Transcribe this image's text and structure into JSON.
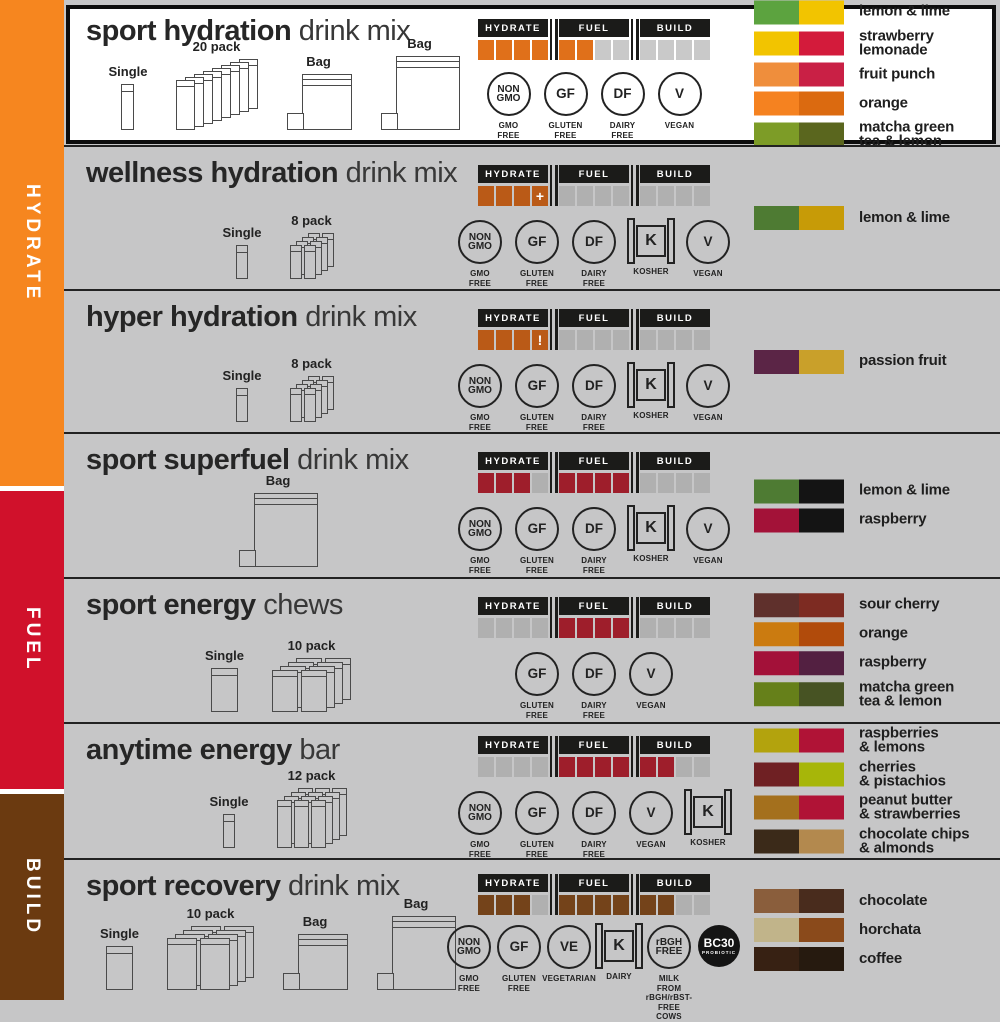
{
  "canvas": {
    "row_bg": "#C6C6C7",
    "highlight_bg": "#FFFFFF",
    "highlight_border": "#0D0D0D"
  },
  "sidebar": {
    "segments": [
      {
        "label": "HYDRATE",
        "color": "#F6861F"
      },
      {
        "label": "FUEL",
        "color": "#D0112B"
      },
      {
        "label": "BUILD",
        "color": "#6B3A10"
      }
    ]
  },
  "meter": {
    "headers": [
      "HYDRATE",
      "FUEL",
      "BUILD"
    ],
    "header_bg": "#1B1B19"
  },
  "products": [
    {
      "id": "sport-hydration",
      "name_bold": "sport hydration",
      "name_rest": " drink mix",
      "highlighted": true,
      "accent": "#E0701A",
      "off_color": "#C9C9C9",
      "packages": [
        {
          "label": "Single",
          "type": "stick"
        },
        {
          "label": "20 pack",
          "type": "stack20"
        },
        {
          "label": "Bag",
          "type": "bag-md"
        },
        {
          "label": "Bag",
          "type": "bag-lg"
        }
      ],
      "cells": {
        "hydrate": [
          "1",
          "1",
          "1",
          "1"
        ],
        "fuel": [
          "1",
          "1",
          "0",
          "0"
        ],
        "build": [
          "0",
          "0",
          "0",
          "0"
        ]
      },
      "badges": [
        {
          "type": "circle",
          "sym": "NON\nGMO",
          "label": "GMO\nFREE"
        },
        {
          "type": "circle",
          "sym": "GF",
          "label": "GLUTEN\nFREE"
        },
        {
          "type": "circle",
          "sym": "DF",
          "label": "DAIRY\nFREE"
        },
        {
          "type": "circle",
          "sym": "V",
          "label": "VEGAN"
        }
      ],
      "flavors": [
        {
          "name": "lemon & lime",
          "c1": "#5CA33F",
          "c2": "#F2C400"
        },
        {
          "name": "strawberry\nlemonade",
          "c1": "#F2C400",
          "c2": "#D31B3B"
        },
        {
          "name": "fruit punch",
          "c1": "#EF8E3C",
          "c2": "#C92045"
        },
        {
          "name": "orange",
          "c1": "#F58220",
          "c2": "#DB6A10"
        },
        {
          "name": "matcha green\ntea & lemon",
          "c1": "#7D9C27",
          "c2": "#5A661E"
        }
      ]
    },
    {
      "id": "wellness-hydration",
      "name_bold": "wellness hydration",
      "name_rest": " drink mix",
      "accent": "#BA5A17",
      "off_color": "#B0B0B0",
      "packages": [
        {
          "label": "Single",
          "type": "stick-sm"
        },
        {
          "label": "8 pack",
          "type": "stack8"
        }
      ],
      "cells": {
        "hydrate": [
          "1",
          "1",
          "1",
          "+"
        ],
        "fuel": [
          "0",
          "0",
          "0",
          "0"
        ],
        "build": [
          "0",
          "0",
          "0",
          "0"
        ]
      },
      "badges": [
        {
          "type": "circle",
          "sym": "NON\nGMO",
          "label": "GMO\nFREE"
        },
        {
          "type": "circle",
          "sym": "GF",
          "label": "GLUTEN\nFREE"
        },
        {
          "type": "circle",
          "sym": "DF",
          "label": "DAIRY\nFREE"
        },
        {
          "type": "kosher",
          "sym": "K",
          "label": "KOSHER"
        },
        {
          "type": "circle",
          "sym": "V",
          "label": "VEGAN"
        }
      ],
      "flavors": [
        {
          "name": "lemon & lime",
          "c1": "#4E7B33",
          "c2": "#C79B07"
        }
      ]
    },
    {
      "id": "hyper-hydration",
      "name_bold": "hyper hydration",
      "name_rest": " drink mix",
      "accent": "#BA5A17",
      "off_color": "#B0B0B0",
      "packages": [
        {
          "label": "Single",
          "type": "stick-sm"
        },
        {
          "label": "8 pack",
          "type": "stack8"
        }
      ],
      "cells": {
        "hydrate": [
          "1",
          "1",
          "1",
          "!"
        ],
        "fuel": [
          "0",
          "0",
          "0",
          "0"
        ],
        "build": [
          "0",
          "0",
          "0",
          "0"
        ]
      },
      "badges": [
        {
          "type": "circle",
          "sym": "NON\nGMO",
          "label": "GMO\nFREE"
        },
        {
          "type": "circle",
          "sym": "GF",
          "label": "GLUTEN\nFREE"
        },
        {
          "type": "circle",
          "sym": "DF",
          "label": "DAIRY\nFREE"
        },
        {
          "type": "kosher",
          "sym": "K",
          "label": "KOSHER"
        },
        {
          "type": "circle",
          "sym": "V",
          "label": "VEGAN"
        }
      ],
      "flavors": [
        {
          "name": "passion fruit",
          "c1": "#5B2546",
          "c2": "#C9A02A"
        }
      ]
    },
    {
      "id": "sport-superfuel",
      "name_bold": "sport superfuel",
      "name_rest": " drink mix",
      "accent": "#9E1E2B",
      "off_color": "#B0B0B0",
      "packages": [
        {
          "label": "Bag",
          "type": "bag-lg"
        }
      ],
      "cells": {
        "hydrate": [
          "1",
          "1",
          "1",
          "0"
        ],
        "fuel": [
          "1",
          "1",
          "1",
          "1"
        ],
        "build": [
          "0",
          "0",
          "0",
          "0"
        ]
      },
      "badges": [
        {
          "type": "circle",
          "sym": "NON\nGMO",
          "label": "GMO\nFREE"
        },
        {
          "type": "circle",
          "sym": "GF",
          "label": "GLUTEN\nFREE"
        },
        {
          "type": "circle",
          "sym": "DF",
          "label": "DAIRY\nFREE"
        },
        {
          "type": "kosher",
          "sym": "K",
          "label": "KOSHER"
        },
        {
          "type": "circle",
          "sym": "V",
          "label": "VEGAN"
        }
      ],
      "flavors": [
        {
          "name": "lemon & lime",
          "c1": "#4E7B33",
          "c2": "#141414"
        },
        {
          "name": "raspberry",
          "c1": "#A31238",
          "c2": "#141414"
        }
      ]
    },
    {
      "id": "sport-energy",
      "name_bold": "sport energy",
      "name_rest": " chews",
      "accent": "#9E1E2B",
      "off_color": "#B0B0B0",
      "packages": [
        {
          "label": "Single",
          "type": "packet"
        },
        {
          "label": "10 pack",
          "type": "stack10"
        }
      ],
      "cells": {
        "hydrate": [
          "0",
          "0",
          "0",
          "0"
        ],
        "fuel": [
          "1",
          "1",
          "1",
          "1"
        ],
        "build": [
          "0",
          "0",
          "0",
          "0"
        ]
      },
      "badges": [
        {
          "type": "circle",
          "sym": "GF",
          "label": "GLUTEN\nFREE"
        },
        {
          "type": "circle",
          "sym": "DF",
          "label": "DAIRY\nFREE"
        },
        {
          "type": "circle",
          "sym": "V",
          "label": "VEGAN"
        }
      ],
      "flavors": [
        {
          "name": "sour cherry",
          "c1": "#5F302C",
          "c2": "#7D2B22"
        },
        {
          "name": "orange",
          "c1": "#CB7B10",
          "c2": "#B14B0B"
        },
        {
          "name": "raspberry",
          "c1": "#A31139",
          "c2": "#532041"
        },
        {
          "name": "matcha green\ntea & lemon",
          "c1": "#66801A",
          "c2": "#475323"
        }
      ]
    },
    {
      "id": "anytime-energy",
      "name_bold": "anytime energy",
      "name_rest": " bar",
      "accent": "#9E1E2B",
      "off_color": "#B0B0B0",
      "packages": [
        {
          "label": "Single",
          "type": "stick-sm"
        },
        {
          "label": "12 pack",
          "type": "stack12"
        }
      ],
      "cells": {
        "hydrate": [
          "0",
          "0",
          "0",
          "0"
        ],
        "fuel": [
          "1",
          "1",
          "1",
          "1"
        ],
        "build": [
          "1",
          "1",
          "0",
          "0"
        ]
      },
      "badges": [
        {
          "type": "circle",
          "sym": "NON\nGMO",
          "label": "GMO\nFREE"
        },
        {
          "type": "circle",
          "sym": "GF",
          "label": "GLUTEN\nFREE"
        },
        {
          "type": "circle",
          "sym": "DF",
          "label": "DAIRY\nFREE"
        },
        {
          "type": "circle",
          "sym": "V",
          "label": "VEGAN"
        },
        {
          "type": "kosher",
          "sym": "K",
          "label": "KOSHER"
        }
      ],
      "flavors": [
        {
          "name": "raspberries\n& lemons",
          "c1": "#B3A30D",
          "c2": "#B01336"
        },
        {
          "name": "cherries\n& pistachios",
          "c1": "#6F2023",
          "c2": "#A7B609"
        },
        {
          "name": "peanut butter\n& strawberries",
          "c1": "#A4701D",
          "c2": "#B01336"
        },
        {
          "name": "chocolate chips\n& almonds",
          "c1": "#3B2A19",
          "c2": "#B3894E"
        }
      ]
    },
    {
      "id": "sport-recovery",
      "name_bold": "sport recovery",
      "name_rest": " drink mix",
      "accent": "#74431A",
      "off_color": "#B0B0B0",
      "packages": [
        {
          "label": "Single",
          "type": "packet"
        },
        {
          "label": "10 pack",
          "type": "stack10r"
        },
        {
          "label": "Bag",
          "type": "bag-md"
        },
        {
          "label": "Bag",
          "type": "bag-lg"
        }
      ],
      "cells": {
        "hydrate": [
          "1",
          "1",
          "1",
          "0"
        ],
        "fuel": [
          "1",
          "1",
          "1",
          "1"
        ],
        "build": [
          "1",
          "1",
          "0",
          "0"
        ]
      },
      "badges": [
        {
          "type": "circle",
          "sym": "NON\nGMO",
          "label": "GMO\nFREE"
        },
        {
          "type": "circle",
          "sym": "GF",
          "label": "GLUTEN\nFREE"
        },
        {
          "type": "circle",
          "sym": "VE",
          "label": "VEGETARIAN"
        },
        {
          "type": "kosher",
          "sym": "K",
          "label": "DAIRY"
        },
        {
          "type": "circle",
          "sym": "rBGH\nFREE",
          "label": "MILK FROM\nrBGH/rBST-\nFREE COWS"
        },
        {
          "type": "solid",
          "sym": "BC30",
          "label": "",
          "tiny": "PROBIOTIC"
        }
      ],
      "flavors": [
        {
          "name": "chocolate",
          "c1": "#8A5E3C",
          "c2": "#492C1D"
        },
        {
          "name": "horchata",
          "c1": "#C1B48A",
          "c2": "#8A4A1B"
        },
        {
          "name": "coffee",
          "c1": "#372113",
          "c2": "#261A0F"
        }
      ]
    }
  ]
}
